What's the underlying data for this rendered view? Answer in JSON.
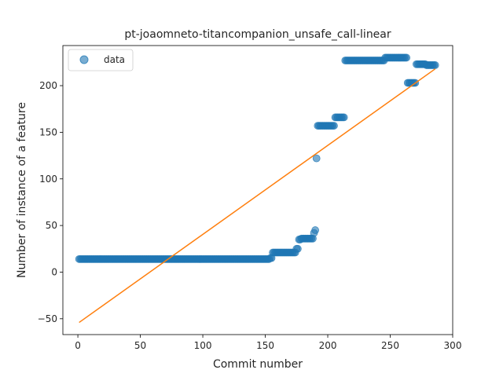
{
  "chart_data": {
    "type": "scatter",
    "title": "pt-joaomneto-titancompanion_unsafe_call-linear",
    "xlabel": "Commit number",
    "ylabel": "Number of instance of a feature",
    "xlim": [
      -12,
      300
    ],
    "ylim": [
      -67,
      243
    ],
    "xticks": [
      0,
      50,
      100,
      150,
      200,
      250,
      300
    ],
    "yticks": [
      -50,
      0,
      50,
      100,
      150,
      200
    ],
    "grid": false,
    "legend": {
      "position": "top-left",
      "entries": [
        "data"
      ]
    },
    "colors": {
      "data": "#1f77b4",
      "fit": "#ff7f0e"
    },
    "series": [
      {
        "name": "data",
        "kind": "points",
        "segments": [
          {
            "x_start": 1,
            "x_end": 153,
            "y": 14
          },
          {
            "x_start": 154,
            "x_end": 155,
            "y": 15
          },
          {
            "x_start": 156,
            "x_end": 174,
            "y": 21
          },
          {
            "x_start": 175,
            "x_end": 176,
            "y": 25
          },
          {
            "x_start": 177,
            "x_end": 178,
            "y": 35
          },
          {
            "x_start": 179,
            "x_end": 188,
            "y": 36
          },
          {
            "x_start": 189,
            "x_end": 189,
            "y": 42
          },
          {
            "x_start": 190,
            "x_end": 190,
            "y": 45
          },
          {
            "x_start": 191,
            "x_end": 191,
            "y": 122
          },
          {
            "x_start": 192,
            "x_end": 205,
            "y": 157
          },
          {
            "x_start": 206,
            "x_end": 213,
            "y": 166
          },
          {
            "x_start": 214,
            "x_end": 245,
            "y": 227
          },
          {
            "x_start": 246,
            "x_end": 263,
            "y": 230
          },
          {
            "x_start": 264,
            "x_end": 270,
            "y": 203
          },
          {
            "x_start": 271,
            "x_end": 278,
            "y": 223
          },
          {
            "x_start": 279,
            "x_end": 286,
            "y": 222
          }
        ]
      },
      {
        "name": "fit",
        "kind": "line",
        "x": [
          1,
          286
        ],
        "y": [
          -54,
          218
        ]
      }
    ]
  }
}
